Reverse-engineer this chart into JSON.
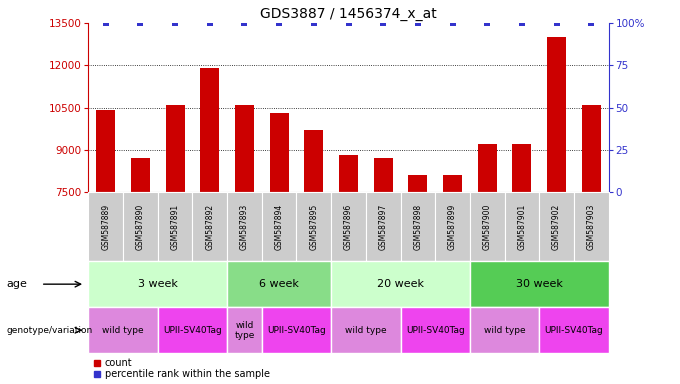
{
  "title": "GDS3887 / 1456374_x_at",
  "samples": [
    "GSM587889",
    "GSM587890",
    "GSM587891",
    "GSM587892",
    "GSM587893",
    "GSM587894",
    "GSM587895",
    "GSM587896",
    "GSM587897",
    "GSM587898",
    "GSM587899",
    "GSM587900",
    "GSM587901",
    "GSM587902",
    "GSM587903"
  ],
  "counts": [
    10400,
    8700,
    10600,
    11900,
    10600,
    10300,
    9700,
    8800,
    8700,
    8100,
    8100,
    9200,
    9200,
    13000,
    10600
  ],
  "percentiles": [
    100,
    100,
    100,
    100,
    100,
    100,
    100,
    100,
    100,
    100,
    100,
    100,
    100,
    100,
    100
  ],
  "ylim_left": [
    7500,
    13500
  ],
  "ylim_right": [
    0,
    100
  ],
  "yticks_left": [
    7500,
    9000,
    10500,
    12000,
    13500
  ],
  "yticks_right": [
    0,
    25,
    50,
    75,
    100
  ],
  "bar_color": "#cc0000",
  "dot_color": "#3333cc",
  "age_groups": [
    {
      "label": "3 week",
      "start": 0,
      "end": 3,
      "color": "#ccffcc"
    },
    {
      "label": "6 week",
      "start": 4,
      "end": 6,
      "color": "#88dd88"
    },
    {
      "label": "20 week",
      "start": 7,
      "end": 10,
      "color": "#ccffcc"
    },
    {
      "label": "30 week",
      "start": 11,
      "end": 14,
      "color": "#55cc55"
    }
  ],
  "genotype_groups": [
    {
      "label": "wild type",
      "start": 0,
      "end": 1,
      "color": "#dd88dd"
    },
    {
      "label": "UPII-SV40Tag",
      "start": 2,
      "end": 3,
      "color": "#ee44ee"
    },
    {
      "label": "wild\ntype",
      "start": 4,
      "end": 4,
      "color": "#dd88dd"
    },
    {
      "label": "UPII-SV40Tag",
      "start": 5,
      "end": 6,
      "color": "#ee44ee"
    },
    {
      "label": "wild type",
      "start": 7,
      "end": 8,
      "color": "#dd88dd"
    },
    {
      "label": "UPII-SV40Tag",
      "start": 9,
      "end": 10,
      "color": "#ee44ee"
    },
    {
      "label": "wild type",
      "start": 11,
      "end": 12,
      "color": "#dd88dd"
    },
    {
      "label": "UPII-SV40Tag",
      "start": 13,
      "end": 14,
      "color": "#ee44ee"
    }
  ],
  "left_axis_color": "#cc0000",
  "right_axis_color": "#3333cc",
  "background_color": "#ffffff",
  "grid_yticks": [
    9000,
    10500,
    12000
  ]
}
